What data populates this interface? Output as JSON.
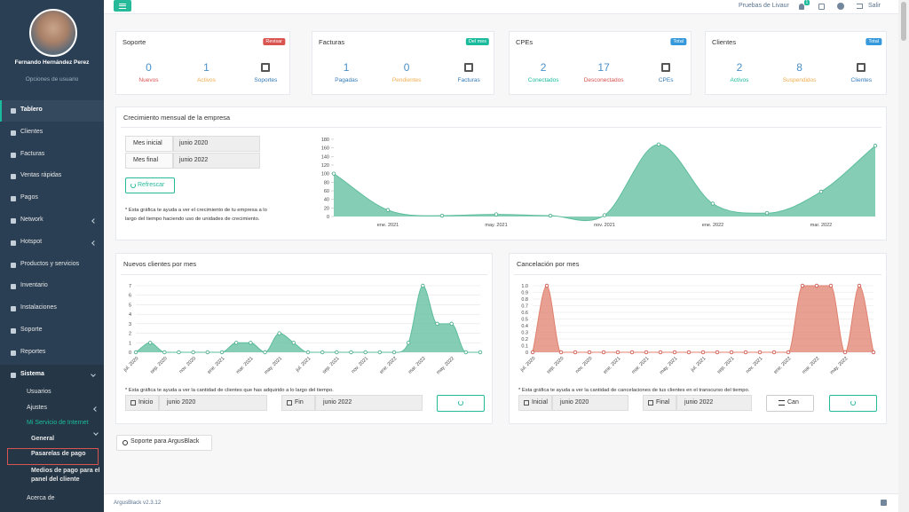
{
  "topbar": {
    "account": "Pruebas de Livaur",
    "notification_count": "1",
    "logout": "Salir"
  },
  "sidebar": {
    "user_name": "Fernando Hernández Perez",
    "user_options": "Opciones de usuario",
    "menu": [
      "Tablero",
      "Clientes",
      "Facturas",
      "Ventas rápidas",
      "Pagos",
      "Network",
      "Hotspot",
      "Productos y servicios",
      "Inventario",
      "Instalaciones",
      "Soporte",
      "Reportes",
      "Sistema"
    ],
    "submenu": [
      "Usuarios",
      "Ajustes",
      "Mi Servicio de Internet",
      "General",
      "Pasarelas de pago",
      "Medios de pago para el panel del cliente",
      "Acerca de"
    ]
  },
  "cards": [
    {
      "title": "Soporte",
      "badge": "Revisar",
      "badge_color": "#d9534f",
      "stats": [
        {
          "value": 0,
          "label": "Nuevos",
          "color": "#d9534f"
        },
        {
          "value": 1,
          "label": "Activos",
          "color": "#f0ad4e"
        }
      ],
      "link": "Soportes"
    },
    {
      "title": "Facturas",
      "badge": "Del mes",
      "badge_color": "#1abb9c",
      "stats": [
        {
          "value": 1,
          "label": "Pagadas",
          "color": "#337ab7"
        },
        {
          "value": 0,
          "label": "Pendientes",
          "color": "#f0ad4e"
        }
      ],
      "link": "Facturas"
    },
    {
      "title": "CPEs",
      "badge": "Total",
      "badge_color": "#3498db",
      "stats": [
        {
          "value": 2,
          "label": "Conectados",
          "color": "#1abb9c"
        },
        {
          "value": 17,
          "label": "Desconectados",
          "color": "#d9534f"
        }
      ],
      "link": "CPEs"
    },
    {
      "title": "Clientes",
      "badge": "Total",
      "badge_color": "#3498db",
      "stats": [
        {
          "value": 2,
          "label": "Activos",
          "color": "#1abb9c"
        },
        {
          "value": 8,
          "label": "Suspendidos",
          "color": "#f0ad4e"
        }
      ],
      "link": "Clientes"
    }
  ],
  "growth": {
    "title": "Crecimiento mensual de la empresa",
    "filters": [
      {
        "label": "Mes inicial",
        "value": "junio 2020"
      },
      {
        "label": "Mes final",
        "value": "junio 2022"
      }
    ],
    "button": "Refrescar",
    "note": "* Esta gráfica te ayuda a ver el crecimiento de tu empresa a lo largo del tiempo haciendo uso de unidades de crecimiento.",
    "chart_data": {
      "type": "area",
      "color": "#5cbd9c",
      "categories": [
        null,
        "ene. 2021",
        null,
        "may. 2021",
        null,
        "nov. 2021",
        null,
        "ene. 2022",
        null,
        "mar. 2022",
        null
      ],
      "values": [
        100,
        15,
        2,
        5,
        2,
        3,
        168,
        30,
        8,
        58,
        165
      ],
      "ylim": [
        0,
        180
      ],
      "yticks": [
        0,
        20,
        40,
        60,
        80,
        100,
        120,
        140,
        160,
        180
      ],
      "grid": false
    }
  },
  "new_clients": {
    "title": "Nuevos clientes por mes",
    "note": "* Esta gráfica te ayuda a ver la cantidad de clientes que has adquirido a lo largo del tiempo.",
    "filters": [
      {
        "label": "Inicio",
        "value": "junio 2020"
      },
      {
        "label": "Fin",
        "value": "junio 2022"
      }
    ],
    "chart_data": {
      "type": "area",
      "color": "#5cbd9c",
      "categories": [
        "jul. 2020",
        null,
        "sep. 2020",
        null,
        "nov. 2020",
        null,
        "ene. 2021",
        null,
        "mar. 2021",
        null,
        "may. 2021",
        null,
        "jul. 2021",
        null,
        "sep. 2021",
        null,
        "nov. 2021",
        null,
        "ene. 2022",
        null,
        "mar. 2022",
        null,
        "may. 2022",
        null,
        null
      ],
      "values": [
        0,
        1,
        0,
        0,
        0,
        0,
        0,
        1,
        1,
        0,
        2,
        1,
        0,
        0,
        0,
        0,
        0,
        0,
        0,
        1,
        7,
        3,
        3,
        0,
        0
      ],
      "ylim": [
        0,
        7
      ],
      "yticks": [
        0,
        1,
        2,
        3,
        4,
        5,
        6,
        7
      ],
      "grid": true
    }
  },
  "cancellations": {
    "title": "Cancelación por mes",
    "note": "* Esta gráfica te ayuda a ver la cantidad de cancelaciones de tus clientes en el transcurso del tiempo.",
    "filters": [
      {
        "label": "Inicial",
        "value": "junio 2020"
      },
      {
        "label": "Final",
        "value": "junio 2022"
      }
    ],
    "button": "Can",
    "chart_data": {
      "type": "area",
      "color": "#e0806f",
      "categories": [
        "jul. 2020",
        null,
        "sep. 2020",
        null,
        "nov. 2020",
        null,
        "ene. 2021",
        null,
        "mar. 2021",
        null,
        "may. 2021",
        null,
        "jul. 2021",
        null,
        "sep. 2021",
        null,
        "nov. 2021",
        null,
        "ene. 2022",
        null,
        "mar. 2022",
        null,
        "may. 2022",
        null,
        null
      ],
      "values": [
        0,
        1,
        0,
        0,
        0,
        0,
        0,
        0,
        0,
        0,
        0,
        0,
        0,
        0,
        0,
        0,
        0,
        0,
        0,
        1,
        1,
        1,
        0,
        1,
        0
      ],
      "ylim": [
        0,
        1
      ],
      "yticks": [
        0,
        0.1,
        0.2,
        0.3,
        0.4,
        0.5,
        0.6,
        0.7,
        0.8,
        0.9,
        {
          "value": 1,
          "label": "1.0"
        }
      ],
      "grid": true
    }
  },
  "support_button": "Soporte para ArgusBlack",
  "footer": "ArgusBlack v2.3.12"
}
